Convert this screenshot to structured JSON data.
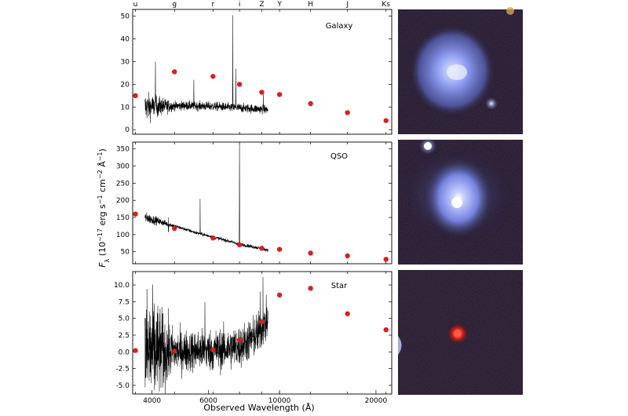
{
  "xlabel": "Observed Wavelength (Å)",
  "ylabel_parts": {
    "sym": "F",
    "sub": "λ",
    "units_open": " (10",
    "exp1": "−17",
    "units_mid": " erg s",
    "exp2": "−1",
    "units_mid2": " cm",
    "exp3": "−2",
    "units_mid3": " Å",
    "exp4": "−1",
    "units_close": ")"
  },
  "filter_bands": [
    {
      "name": "u",
      "wavelength": 3550
    },
    {
      "name": "g",
      "wavelength": 4700
    },
    {
      "name": "r",
      "wavelength": 6200
    },
    {
      "name": "i",
      "wavelength": 7500
    },
    {
      "name": "Z",
      "wavelength": 8800
    },
    {
      "name": "Y",
      "wavelength": 10000
    },
    {
      "name": "H",
      "wavelength": 12500
    },
    {
      "name": "J",
      "wavelength": 16300
    },
    {
      "name": "Ks",
      "wavelength": 21500
    }
  ],
  "images": [
    {
      "subject": "Galaxy",
      "colors": {
        "background": "#1a1424",
        "core": "#d8e0ff",
        "halo": "#6f7fe0"
      }
    },
    {
      "subject": "QSO",
      "colors": {
        "background": "#1a1424",
        "core": "#ffffff",
        "halo": "#7d8ae6"
      }
    },
    {
      "subject": "Star",
      "colors": {
        "background": "#1b1522",
        "core": "#ff3a2a",
        "halo": "#c81818"
      }
    }
  ],
  "chart_data": [
    {
      "type": "line",
      "label": "Galaxy",
      "xscale": "log",
      "xlim": [
        3480,
        22400
      ],
      "ylim": [
        -2,
        53
      ],
      "yticks": [
        0,
        10,
        20,
        30,
        40,
        50
      ],
      "xticks": [],
      "spectrum": {
        "x_range": [
          3800,
          9200
        ],
        "continuum": [
          [
            3800,
            10
          ],
          [
            5000,
            10.6
          ],
          [
            6200,
            10.3
          ],
          [
            7200,
            9.7
          ],
          [
            8000,
            9.4
          ],
          [
            9200,
            8.8
          ]
        ],
        "noise": 1.4,
        "lines": [
          [
            4100,
            30
          ],
          [
            5400,
            22
          ],
          [
            7150,
            50.5
          ],
          [
            7300,
            27
          ],
          [
            8900,
            17
          ]
        ]
      },
      "photometry": {
        "x": [
          3550,
          4700,
          6200,
          7500,
          8800,
          10000,
          12500,
          16300,
          21500
        ],
        "y": [
          15,
          25.5,
          23.5,
          20,
          16.5,
          15.5,
          11.5,
          7.5,
          4
        ]
      }
    },
    {
      "type": "line",
      "label": "QSO",
      "xscale": "log",
      "xlim": [
        3480,
        22400
      ],
      "ylim": [
        15,
        370
      ],
      "yticks": [
        50,
        100,
        150,
        200,
        250,
        300,
        350
      ],
      "xticks": [],
      "spectrum": {
        "x_range": [
          3800,
          9200
        ],
        "continuum": [
          [
            3800,
            150
          ],
          [
            4500,
            130
          ],
          [
            5500,
            105
          ],
          [
            6500,
            88
          ],
          [
            7500,
            72
          ],
          [
            8500,
            62
          ],
          [
            9200,
            55
          ]
        ],
        "noise": 3.5,
        "lines": [
          [
            4500,
            150
          ],
          [
            5650,
            205
          ],
          [
            7500,
            365
          ]
        ]
      },
      "photometry": {
        "x": [
          3550,
          4700,
          6200,
          7500,
          8800,
          10000,
          12500,
          16300,
          21500
        ],
        "y": [
          160,
          118,
          90,
          70,
          60,
          57,
          46,
          38,
          28
        ]
      }
    },
    {
      "type": "line",
      "label": "Star",
      "xscale": "log",
      "xlim": [
        3480,
        22400
      ],
      "ylim": [
        -6.3,
        12
      ],
      "yticks": [
        -5.0,
        -2.5,
        0.0,
        2.5,
        5.0,
        7.5,
        10.0
      ],
      "xticks": [
        4000,
        6000,
        10000,
        20000
      ],
      "spectrum": {
        "x_range": [
          3800,
          9200
        ],
        "continuum": [
          [
            3800,
            0.0
          ],
          [
            5000,
            0.1
          ],
          [
            6500,
            0.3
          ],
          [
            7500,
            0.8
          ],
          [
            8500,
            2.5
          ],
          [
            9100,
            4.5
          ]
        ],
        "noise": 2.2,
        "lines": [
          [
            5850,
            7.5
          ],
          [
            8880,
            11.2
          ],
          [
            8700,
            9.0
          ]
        ]
      },
      "photometry": {
        "x": [
          3550,
          4700,
          6200,
          7500,
          8800,
          10000,
          12500,
          16300,
          21500
        ],
        "y": [
          0.2,
          0.1,
          0.3,
          1.8,
          4.5,
          8.5,
          9.5,
          5.7,
          3.3
        ]
      }
    }
  ]
}
